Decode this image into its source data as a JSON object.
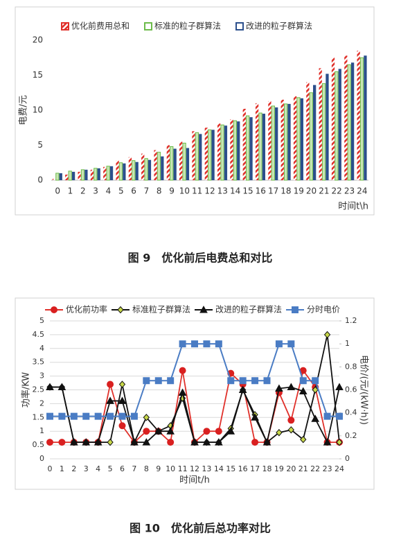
{
  "chart_data": [
    {
      "type": "bar",
      "caption": "图 9　优化前后电费总和对比",
      "ylabel": "电费/元",
      "xlabel": "时间t\\h",
      "categories": [
        0,
        1,
        2,
        3,
        4,
        5,
        6,
        7,
        8,
        9,
        10,
        11,
        12,
        13,
        14,
        15,
        16,
        17,
        18,
        19,
        20,
        21,
        22,
        23,
        24
      ],
      "series": [
        {
          "name": "优化前费用总和",
          "color": "#e0302a",
          "values": [
            0.2,
            0.8,
            1.2,
            1.5,
            1.9,
            2.8,
            3.3,
            3.8,
            4.3,
            5.0,
            5.5,
            7.0,
            7.5,
            8.1,
            8.7,
            10.2,
            11.0,
            11.3,
            11.5,
            12.0,
            14.0,
            16.0,
            17.5,
            17.8,
            18.5
          ]
        },
        {
          "name": "标准的粒子群算法",
          "color": "#6cbb4a",
          "values": [
            1.0,
            1.3,
            1.5,
            1.7,
            2.0,
            2.5,
            2.8,
            3.1,
            4.0,
            4.8,
            5.3,
            6.8,
            7.2,
            7.9,
            8.5,
            9.2,
            9.6,
            10.6,
            10.9,
            11.8,
            12.5,
            13.8,
            15.5,
            16.5,
            17.5
          ]
        },
        {
          "name": "改进的粒子群算法",
          "color": "#2b4f8c",
          "values": [
            1.0,
            1.2,
            1.5,
            1.7,
            2.0,
            2.4,
            2.6,
            2.9,
            3.4,
            4.5,
            4.6,
            6.6,
            7.2,
            7.8,
            8.4,
            9.0,
            9.5,
            10.4,
            10.9,
            11.7,
            13.6,
            15.2,
            15.9,
            16.8,
            17.8
          ]
        }
      ],
      "ylim": [
        0,
        20
      ],
      "yticks": [
        0,
        5,
        10,
        15,
        20
      ],
      "grid": false,
      "legend": "top"
    },
    {
      "type": "line",
      "caption": "图 10　优化前后总功率对比",
      "ylabel": "功率/KW",
      "y2label": "电价/(元/(kW·h))",
      "xlabel": "时间t/h",
      "x": [
        0,
        1,
        2,
        3,
        4,
        5,
        6,
        7,
        8,
        9,
        10,
        11,
        12,
        13,
        14,
        15,
        16,
        17,
        18,
        19,
        20,
        21,
        22,
        23,
        24
      ],
      "series": [
        {
          "name": "优化前功率",
          "color": "#e0302a",
          "marker": "circle",
          "marker_color": "#d92020",
          "values": [
            0.6,
            0.6,
            0.6,
            0.6,
            0.6,
            2.7,
            1.2,
            0.6,
            1.0,
            1.0,
            0.6,
            3.2,
            0.6,
            1.0,
            1.0,
            3.1,
            2.7,
            0.6,
            0.6,
            2.4,
            1.4,
            3.2,
            2.6,
            0.6,
            0.6
          ]
        },
        {
          "name": "标准粒子群算法",
          "color": "#111111",
          "marker": "diamond",
          "marker_color": "#c8d84a",
          "values": [
            2.6,
            2.6,
            0.6,
            0.6,
            0.6,
            0.6,
            2.7,
            0.6,
            1.5,
            1.0,
            1.2,
            2.2,
            0.6,
            0.6,
            0.6,
            1.1,
            2.5,
            1.6,
            0.6,
            0.95,
            1.05,
            0.7,
            2.5,
            4.5,
            0.6
          ]
        },
        {
          "name": "改进的粒子群算法",
          "color": "#111111",
          "marker": "triangle",
          "marker_color": "#111111",
          "values": [
            2.6,
            2.6,
            0.6,
            0.6,
            0.6,
            2.1,
            2.1,
            0.6,
            0.6,
            1.0,
            1.0,
            2.4,
            0.6,
            0.6,
            0.6,
            1.0,
            2.5,
            1.5,
            0.6,
            2.55,
            2.6,
            2.45,
            1.45,
            0.6,
            2.6
          ]
        },
        {
          "name": "分时电价",
          "color": "#4a7cc4",
          "marker": "square",
          "marker_color": "#4a7cc4",
          "axis": "y2",
          "values": [
            0.37,
            0.37,
            0.37,
            0.37,
            0.37,
            0.37,
            0.37,
            0.37,
            0.68,
            0.68,
            0.68,
            1.0,
            1.0,
            1.0,
            1.0,
            0.68,
            0.68,
            0.68,
            0.68,
            1.0,
            1.0,
            0.68,
            0.68,
            0.37,
            0.37
          ]
        }
      ],
      "xlim": [
        0,
        24
      ],
      "ylim": [
        0,
        5
      ],
      "yticks": [
        0,
        0.5,
        1,
        1.5,
        2,
        2.5,
        3,
        3.5,
        4,
        4.5,
        5
      ],
      "y2lim": [
        0,
        1.2
      ],
      "y2ticks": [
        0,
        0.2,
        0.4,
        0.6,
        0.8,
        1,
        1.2
      ],
      "grid": true,
      "legend": "top"
    }
  ]
}
